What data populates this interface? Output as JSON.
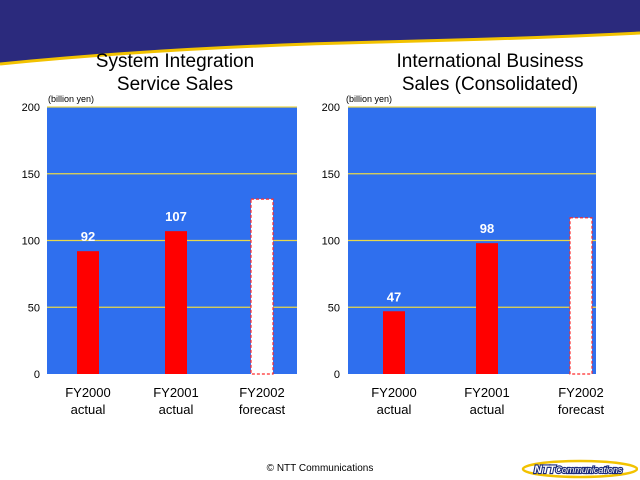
{
  "colors": {
    "header_band": "#2b2a7d",
    "plot_background": "#2f6fee",
    "gridline": "#e9d74a",
    "actual_bar": "#ff0000",
    "forecast_bar": "#ffffff",
    "forecast_border": "#ff2a2a",
    "curve_accent": "#f2c200"
  },
  "charts": [
    {
      "title_line1": "System Integration",
      "title_line2": "Service Sales",
      "unit_label": "(billion yen)"
    },
    {
      "title_line1": "International Business",
      "title_line2": "Sales (Consolidated)",
      "unit_label": "(billion yen)"
    }
  ],
  "chart_data": [
    {
      "type": "bar",
      "title": "System Integration Service Sales",
      "ylabel": "(billion yen)",
      "ylim": [
        0,
        200
      ],
      "yticks": [
        "0",
        "50",
        "100",
        "150",
        "200"
      ],
      "grid": true,
      "categories": [
        {
          "line1": "FY2000",
          "line2": "actual"
        },
        {
          "line1": "FY2001",
          "line2": "actual"
        },
        {
          "line1": "FY2002",
          "line2": "forecast"
        }
      ],
      "values": [
        92,
        107,
        131
      ],
      "forecast": [
        false,
        false,
        true
      ],
      "data_labels": [
        "92",
        "107",
        ""
      ]
    },
    {
      "type": "bar",
      "title": "International Business Sales (Consolidated)",
      "ylabel": "(billion yen)",
      "ylim": [
        0,
        200
      ],
      "yticks": [
        "0",
        "50",
        "100",
        "150",
        "200"
      ],
      "grid": true,
      "categories": [
        {
          "line1": "FY2000",
          "line2": "actual"
        },
        {
          "line1": "FY2001",
          "line2": "actual"
        },
        {
          "line1": "FY2002",
          "line2": "forecast"
        }
      ],
      "values": [
        47,
        98,
        117
      ],
      "forecast": [
        false,
        false,
        true
      ],
      "data_labels": [
        "47",
        "98",
        ""
      ]
    }
  ],
  "footer": {
    "copyright": "© NTT Communications",
    "logo_text": "NTT Communications",
    "logo_text_bold": "NTT",
    "logo_text_rest": "Communications"
  }
}
